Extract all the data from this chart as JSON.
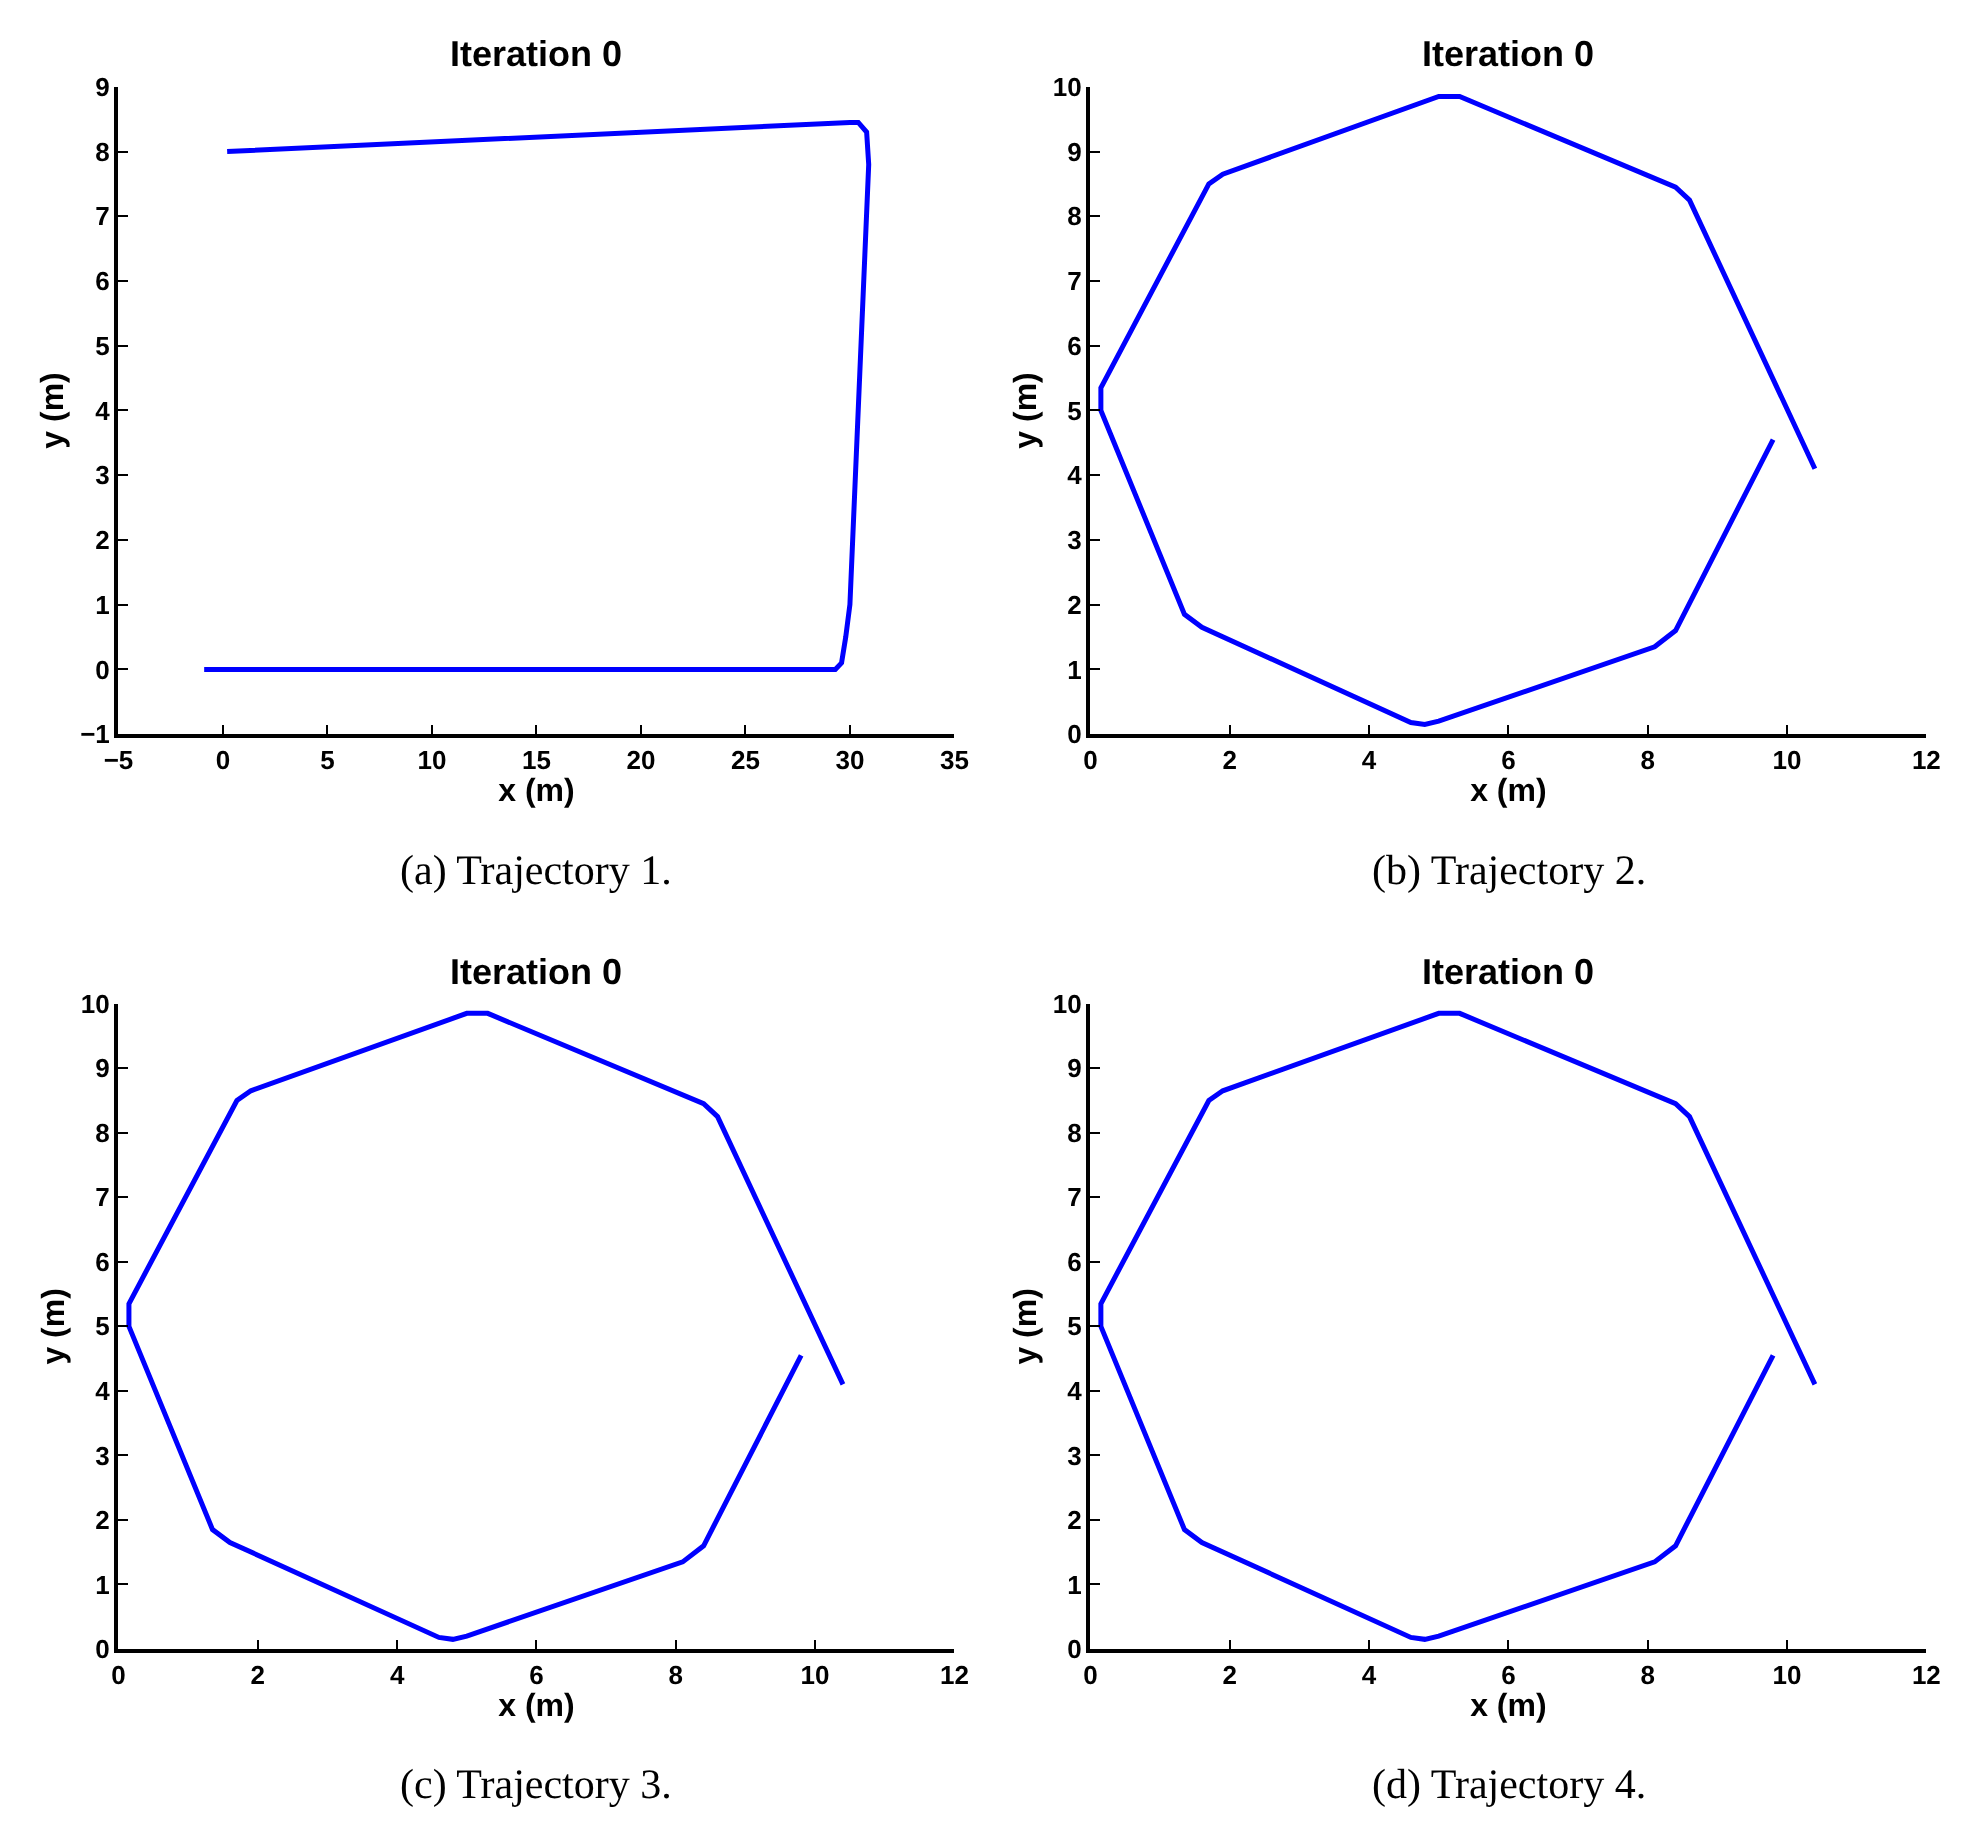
{
  "chart_data": [
    {
      "type": "line",
      "title": "Iteration 0",
      "xlabel": "x (m)",
      "ylabel": "y (m)",
      "annotations": [
        "(a) Trajectory 1."
      ],
      "marker": "none",
      "line_style": "solid",
      "series": [
        {
          "color": "#0000ff",
          "x": [
            -0.9,
            29.3,
            29.6,
            29.8,
            30.0,
            30.9,
            30.8,
            30.4,
            30.0,
            0.2
          ],
          "values": [
            0,
            0,
            0.1,
            0.5,
            1.0,
            7.8,
            8.3,
            8.45,
            8.45,
            8.0
          ]
        }
      ],
      "xlim": [
        -5,
        35
      ],
      "xticks": [
        {
          "value": -5,
          "label": "−5"
        },
        0,
        5,
        10,
        15,
        20,
        25,
        30,
        35
      ],
      "ylim": [
        -1,
        9
      ],
      "yticks": [
        {
          "value": -1,
          "label": "−1"
        },
        0,
        1,
        2,
        3,
        4,
        5,
        6,
        7,
        8,
        9
      ]
    },
    {
      "type": "line",
      "title": "Iteration 0",
      "xlabel": "x (m)",
      "ylabel": "y (m)",
      "annotations": [
        "(b) Trajectory 2."
      ],
      "marker": "none",
      "line_style": "solid",
      "series": [
        {
          "color": "#0000ff",
          "x": [
            9.8,
            8.4,
            8.1,
            5.0,
            4.8,
            4.6,
            1.6,
            1.35,
            0.15,
            0.15,
            1.7,
            1.9,
            5.0,
            5.3,
            8.4,
            8.6,
            10.4
          ],
          "values": [
            4.55,
            1.6,
            1.35,
            0.2,
            0.15,
            0.18,
            1.65,
            1.85,
            5.0,
            5.35,
            8.5,
            8.65,
            9.85,
            9.85,
            8.45,
            8.25,
            4.1
          ]
        }
      ],
      "xlim": [
        0,
        12
      ],
      "xticks": [
        0,
        2,
        4,
        6,
        8,
        10,
        12
      ],
      "ylim": [
        0,
        10
      ],
      "yticks": [
        0,
        1,
        2,
        3,
        4,
        5,
        6,
        7,
        8,
        9,
        10
      ]
    },
    {
      "type": "line",
      "title": "Iteration 0",
      "xlabel": "x (m)",
      "ylabel": "y (m)",
      "annotations": [
        "(c) Trajectory 3."
      ],
      "marker": "none",
      "line_style": "solid",
      "series": [
        {
          "color": "#0000ff",
          "x": [
            9.8,
            8.4,
            8.1,
            5.0,
            4.8,
            4.6,
            1.6,
            1.35,
            0.15,
            0.15,
            1.7,
            1.9,
            5.0,
            5.3,
            8.4,
            8.6,
            10.4
          ],
          "values": [
            4.55,
            1.6,
            1.35,
            0.2,
            0.15,
            0.18,
            1.65,
            1.85,
            5.0,
            5.35,
            8.5,
            8.65,
            9.85,
            9.85,
            8.45,
            8.25,
            4.1
          ]
        }
      ],
      "xlim": [
        0,
        12
      ],
      "xticks": [
        0,
        2,
        4,
        6,
        8,
        10,
        12
      ],
      "ylim": [
        0,
        10
      ],
      "yticks": [
        0,
        1,
        2,
        3,
        4,
        5,
        6,
        7,
        8,
        9,
        10
      ]
    },
    {
      "type": "line",
      "title": "Iteration 0",
      "xlabel": "x (m)",
      "ylabel": "y (m)",
      "annotations": [
        "(d) Trajectory 4."
      ],
      "marker": "none",
      "line_style": "solid",
      "series": [
        {
          "color": "#0000ff",
          "x": [
            9.8,
            8.4,
            8.1,
            5.0,
            4.8,
            4.6,
            1.6,
            1.35,
            0.15,
            0.15,
            1.7,
            1.9,
            5.0,
            5.3,
            8.4,
            8.6,
            10.4
          ],
          "values": [
            4.55,
            1.6,
            1.35,
            0.2,
            0.15,
            0.18,
            1.65,
            1.85,
            5.0,
            5.35,
            8.5,
            8.65,
            9.85,
            9.85,
            8.45,
            8.25,
            4.1
          ]
        }
      ],
      "xlim": [
        0,
        12
      ],
      "xticks": [
        0,
        2,
        4,
        6,
        8,
        10,
        12
      ],
      "ylim": [
        0,
        10
      ],
      "yticks": [
        0,
        1,
        2,
        3,
        4,
        5,
        6,
        7,
        8,
        9,
        10
      ]
    }
  ]
}
